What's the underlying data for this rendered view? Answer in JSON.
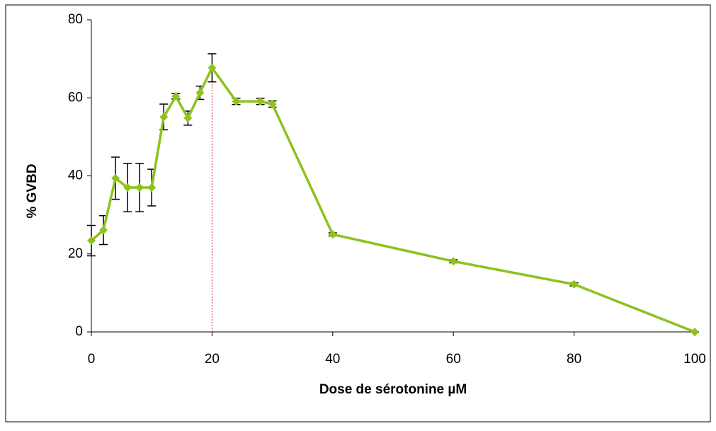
{
  "chart_data": {
    "type": "line",
    "x_label": "Dose de sérotonine µM",
    "y_label": "% GVBD",
    "x": [
      0,
      2,
      4,
      6,
      8,
      10,
      12,
      14,
      16,
      18,
      20,
      24,
      28,
      30,
      40,
      60,
      80,
      100
    ],
    "values": [
      23.4,
      26.1,
      39.4,
      37,
      37,
      37,
      55.1,
      60.4,
      54.8,
      61.3,
      67.7,
      59.1,
      59.1,
      58.4,
      25,
      18.1,
      12.2,
      0
    ],
    "errors": [
      3.9,
      3.7,
      5.4,
      6.2,
      6.2,
      4.7,
      3.3,
      0.7,
      1.8,
      1.7,
      3.6,
      0.8,
      0.8,
      0.8,
      0.4,
      0.4,
      0.4,
      0
    ],
    "color": "#8dc21f",
    "error_color": "#000000",
    "vline_x": 20,
    "vline_color": "#e02020",
    "xlim": [
      0,
      100
    ],
    "xticks": [
      0,
      20,
      40,
      60,
      80,
      100
    ],
    "ylim": [
      0,
      80
    ],
    "yticks": [
      0,
      20,
      40,
      60,
      80
    ],
    "grid": false
  }
}
